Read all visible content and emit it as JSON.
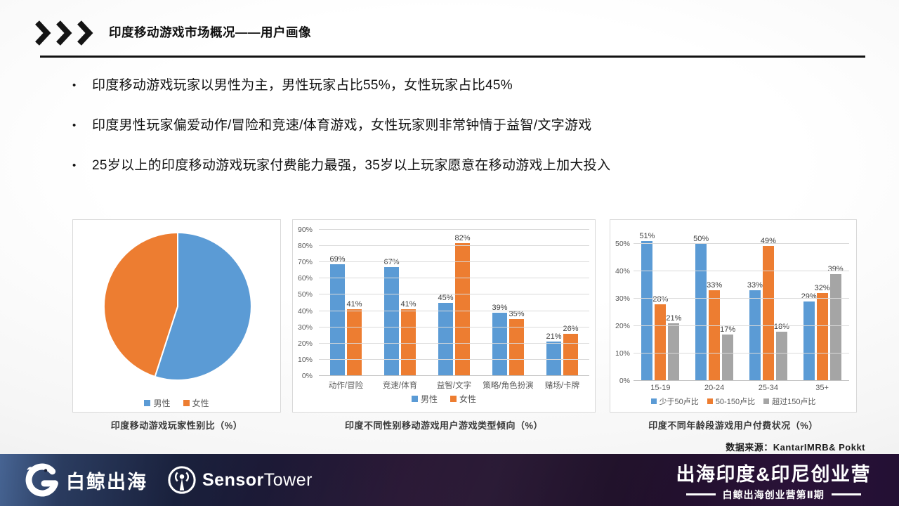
{
  "slide": {
    "title": "印度移动游戏市场概况——用户画像",
    "bullets": [
      "印度移动游戏玩家以男性为主，男性玩家占比55%，女性玩家占比45%",
      "印度男性玩家偏爱动作/冒险和竞速/体育游戏，女性玩家则非常钟情于益智/文字游戏",
      "25岁以上的印度移动游戏玩家付费能力最强，35岁以上玩家愿意在移动游戏上加大投入"
    ],
    "source": "数据来源：KantarIMRB& Pokkt",
    "bullet_glyph": "•"
  },
  "chart_data": [
    {
      "id": "gender-pie",
      "type": "pie",
      "title": "印度移动游戏玩家性别比（%）",
      "labels": [
        "男性",
        "女性"
      ],
      "values": [
        55,
        45
      ],
      "colors": [
        "#5B9BD5",
        "#ED7D31"
      ],
      "start_angle_deg": 0,
      "legend_position": "bottom"
    },
    {
      "id": "genre-by-gender",
      "type": "bar",
      "title": "印度不同性别移动游戏用户游戏类型倾向（%）",
      "categories": [
        "动作/冒险",
        "竞速/体育",
        "益智/文字",
        "策略/角色扮演",
        "赌场/卡牌"
      ],
      "series": [
        {
          "name": "男性",
          "color": "#5B9BD5",
          "values": [
            69,
            67,
            45,
            39,
            21
          ]
        },
        {
          "name": "女性",
          "color": "#ED7D31",
          "values": [
            41,
            41,
            82,
            35,
            26
          ]
        }
      ],
      "value_suffix": "%",
      "ylim": [
        0,
        90
      ],
      "axis_max": 90,
      "yticks": [
        0,
        10,
        20,
        30,
        40,
        50,
        60,
        70,
        80,
        90
      ],
      "grid": true,
      "legend_position": "bottom"
    },
    {
      "id": "spend-by-age",
      "type": "bar",
      "title": "印度不同年龄段游戏用户付费状况（%）",
      "categories": [
        "15-19",
        "20-24",
        "25-34",
        "35+"
      ],
      "series": [
        {
          "name": "少于50卢比",
          "color": "#5B9BD5",
          "values": [
            51,
            50,
            33,
            29
          ]
        },
        {
          "name": "50-150卢比",
          "color": "#ED7D31",
          "values": [
            28,
            33,
            49,
            32
          ]
        },
        {
          "name": "超过150卢比",
          "color": "#A5A5A5",
          "values": [
            21,
            17,
            18,
            39
          ]
        }
      ],
      "value_suffix": "%",
      "ylim": [
        0,
        55
      ],
      "axis_max": 55,
      "yticks": [
        0,
        10,
        20,
        30,
        40,
        50
      ],
      "grid": true,
      "legend_position": "bottom"
    }
  ],
  "footer": {
    "brand1": "白鲸出海",
    "brand2_bold": "Sensor",
    "brand2_regular": "Tower",
    "event_title": "出海印度&印尼创业营",
    "event_subtitle": "白鲸出海创业营第Ⅱ期"
  },
  "colors": {
    "series_blue": "#5B9BD5",
    "series_orange": "#ED7D31",
    "series_gray": "#A5A5A5",
    "grid": "#DADADA",
    "axis_text": "#595959"
  }
}
